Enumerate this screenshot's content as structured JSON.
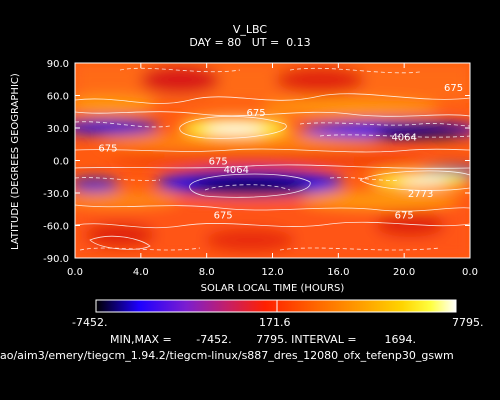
{
  "title": "V_LBC",
  "subtitle": {
    "day_label": "DAY =",
    "day_value": "80",
    "ut_label": "UT =",
    "ut_value": "0.13"
  },
  "chart_data": {
    "type": "heatmap",
    "xlabel": "SOLAR LOCAL TIME (HOURS)",
    "ylabel": "LATITUDE (DEGREES GEOGRAPHIC)",
    "xlim": [
      0,
      24
    ],
    "ylim": [
      -90,
      90
    ],
    "x_ticks": [
      "0.0",
      "4.0",
      "8.0",
      "12.0",
      "16.0",
      "20.0",
      "0.0"
    ],
    "y_ticks": [
      "90.0",
      "60.0",
      "30.0",
      "0.0",
      "-30.0",
      "-60.0",
      "-90.0"
    ],
    "contour_labels": [
      {
        "text": "675",
        "x": 11.0,
        "y": 45
      },
      {
        "text": "675",
        "x": 2.0,
        "y": 12
      },
      {
        "text": "675",
        "x": 23.0,
        "y": 68
      },
      {
        "text": "4064",
        "x": 20.0,
        "y": 22
      },
      {
        "text": "675",
        "x": 8.7,
        "y": 0
      },
      {
        "text": "4064",
        "x": 9.8,
        "y": -8
      },
      {
        "text": "2773",
        "x": 21.0,
        "y": -30
      },
      {
        "text": "675",
        "x": 9.0,
        "y": -50
      },
      {
        "text": "675",
        "x": 20.0,
        "y": -50
      }
    ],
    "colorbar": {
      "min_label": "-7452.",
      "mid_label": "171.6",
      "max_label": "7795.",
      "colors": [
        "#000000",
        "#1e00ff",
        "#7b1dd0",
        "#c81f62",
        "#ff2000",
        "#ff6a00",
        "#ffa000",
        "#ffd400",
        "#ffff40",
        "#ffffff"
      ]
    },
    "stats": {
      "minmax_label": "MIN,MAX =",
      "min": "-7452.",
      "max": "7795.",
      "interval_label": "INTERVAL =",
      "interval": "1694."
    }
  },
  "footer_path": "ao/aim3/emery/tiegcm_1.94.2/tiegcm-linux/s887_dres_12080_ofx_tefenp30_gswm"
}
